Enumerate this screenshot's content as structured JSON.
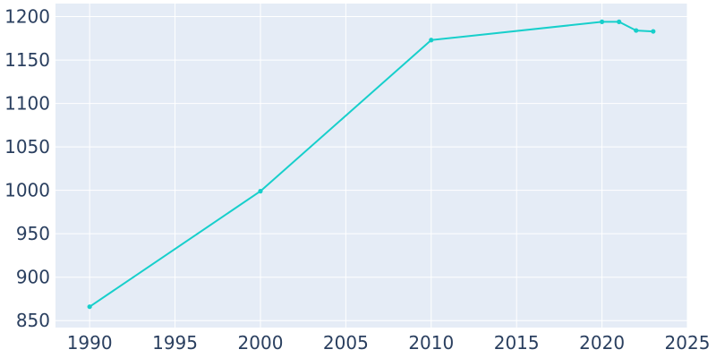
{
  "chart_data": {
    "type": "line",
    "title": "",
    "xlabel": "",
    "ylabel": "",
    "xlim": [
      1988,
      2025
    ],
    "ylim": [
      842,
      1215
    ],
    "x_ticks": [
      1990,
      1995,
      2000,
      2005,
      2010,
      2015,
      2020,
      2025
    ],
    "y_ticks": [
      850,
      900,
      950,
      1000,
      1050,
      1100,
      1150,
      1200
    ],
    "grid": true,
    "colors": {
      "plot_background": "#e5ecf6",
      "grid": "#ffffff",
      "line": "#17cfcb",
      "tick_text": "#2a3f5f"
    },
    "series": [
      {
        "x": [
          1990,
          2000,
          2010,
          2020,
          2021,
          2022,
          2023
        ],
        "y": [
          866,
          999,
          1173,
          1194,
          1194,
          1184,
          1183
        ]
      }
    ]
  }
}
